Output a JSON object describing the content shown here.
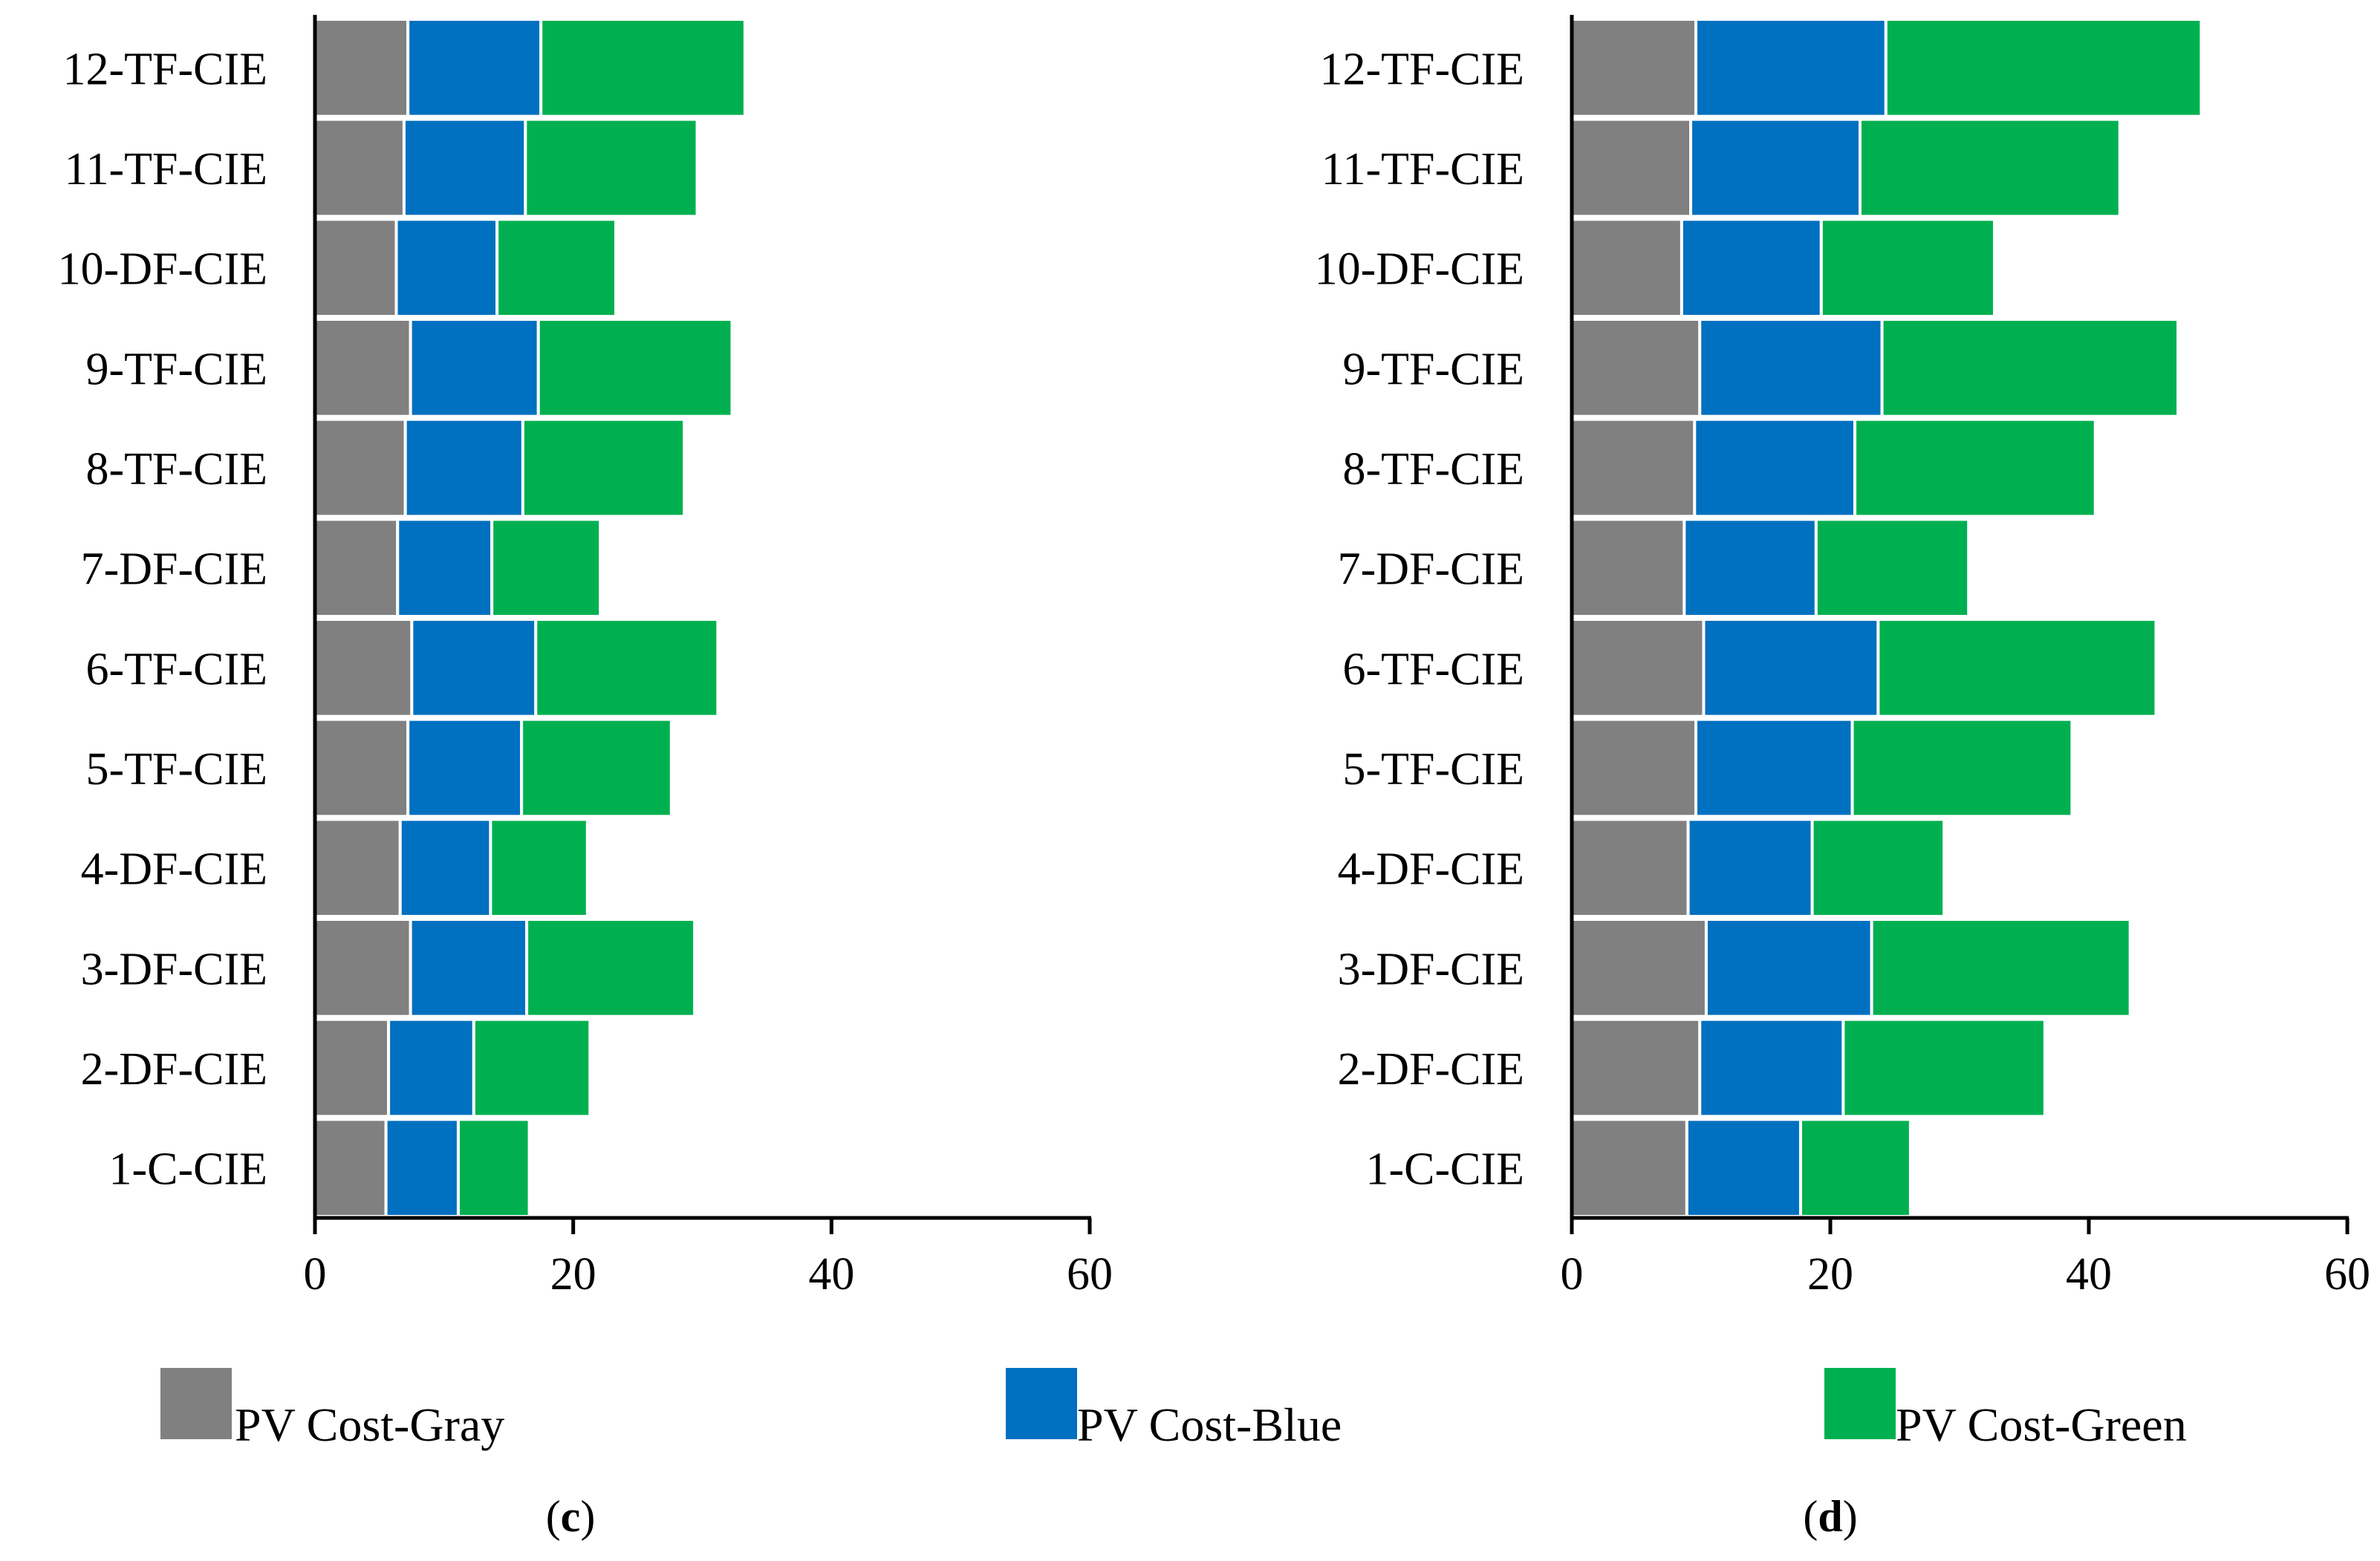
{
  "colors": {
    "gray": "#808080",
    "blue": "#0070C0",
    "green": "#00B050",
    "axis": "#000000",
    "bar_outline": "#ffffff"
  },
  "legend": [
    {
      "key": "gray",
      "label": "PV Cost-Gray"
    },
    {
      "key": "blue",
      "label": "PV Cost-Blue"
    },
    {
      "key": "green",
      "label": "PV Cost-Green"
    }
  ],
  "chart_data": [
    {
      "type": "bar",
      "orientation": "horizontal",
      "stacked": true,
      "panel_label": "c",
      "categories": [
        "1-C-CIE",
        "2-DF-CIE",
        "3-DF-CIE",
        "4-DF-CIE",
        "5-TF-CIE",
        "6-TF-CIE",
        "7-DF-CIE",
        "8-TF-CIE",
        "9-TF-CIE",
        "10-DF-CIE",
        "11-TF-CIE",
        "12-TF-CIE"
      ],
      "series": [
        {
          "name": "PV Cost-Gray",
          "color_key": "gray",
          "values": [
            5.5,
            5.7,
            7.4,
            6.6,
            7.2,
            7.5,
            6.4,
            7.0,
            7.4,
            6.3,
            6.9,
            7.2
          ]
        },
        {
          "name": "PV Cost-Blue",
          "color_key": "blue",
          "values": [
            5.6,
            6.6,
            9.0,
            7.0,
            8.8,
            9.6,
            7.3,
            9.1,
            9.9,
            7.8,
            9.4,
            10.3
          ]
        },
        {
          "name": "PV Cost-Green",
          "color_key": "green",
          "values": [
            5.5,
            9.0,
            13.0,
            7.5,
            11.6,
            14.1,
            8.4,
            12.5,
            15.0,
            9.2,
            13.3,
            15.8
          ]
        }
      ],
      "xlim": [
        0,
        60
      ],
      "xticks": [
        0,
        20,
        40,
        60
      ],
      "xlabel": "",
      "ylabel": ""
    },
    {
      "type": "bar",
      "orientation": "horizontal",
      "stacked": true,
      "panel_label": "d",
      "categories": [
        "1-C-CIE",
        "2-DF-CIE",
        "3-DF-CIE",
        "4-DF-CIE",
        "5-TF-CIE",
        "6-TF-CIE",
        "7-DF-CIE",
        "8-TF-CIE",
        "9-TF-CIE",
        "10-DF-CIE",
        "11-TF-CIE",
        "12-TF-CIE"
      ],
      "series": [
        {
          "name": "PV Cost-Gray",
          "color_key": "gray",
          "values": [
            8.9,
            9.9,
            10.4,
            9.0,
            9.6,
            10.2,
            8.7,
            9.5,
            9.9,
            8.5,
            9.2,
            9.6
          ]
        },
        {
          "name": "PV Cost-Blue",
          "color_key": "blue",
          "values": [
            8.8,
            11.1,
            12.8,
            9.6,
            12.1,
            13.5,
            10.2,
            12.4,
            14.1,
            10.8,
            13.1,
            14.7
          ]
        },
        {
          "name": "PV Cost-Green",
          "color_key": "green",
          "values": [
            8.5,
            15.6,
            20.0,
            10.2,
            17.0,
            21.5,
            11.8,
            18.6,
            22.9,
            13.4,
            20.1,
            24.4
          ]
        }
      ],
      "xlim": [
        0,
        60
      ],
      "xticks": [
        0,
        20,
        40,
        60
      ],
      "xlabel": "",
      "ylabel": ""
    }
  ]
}
